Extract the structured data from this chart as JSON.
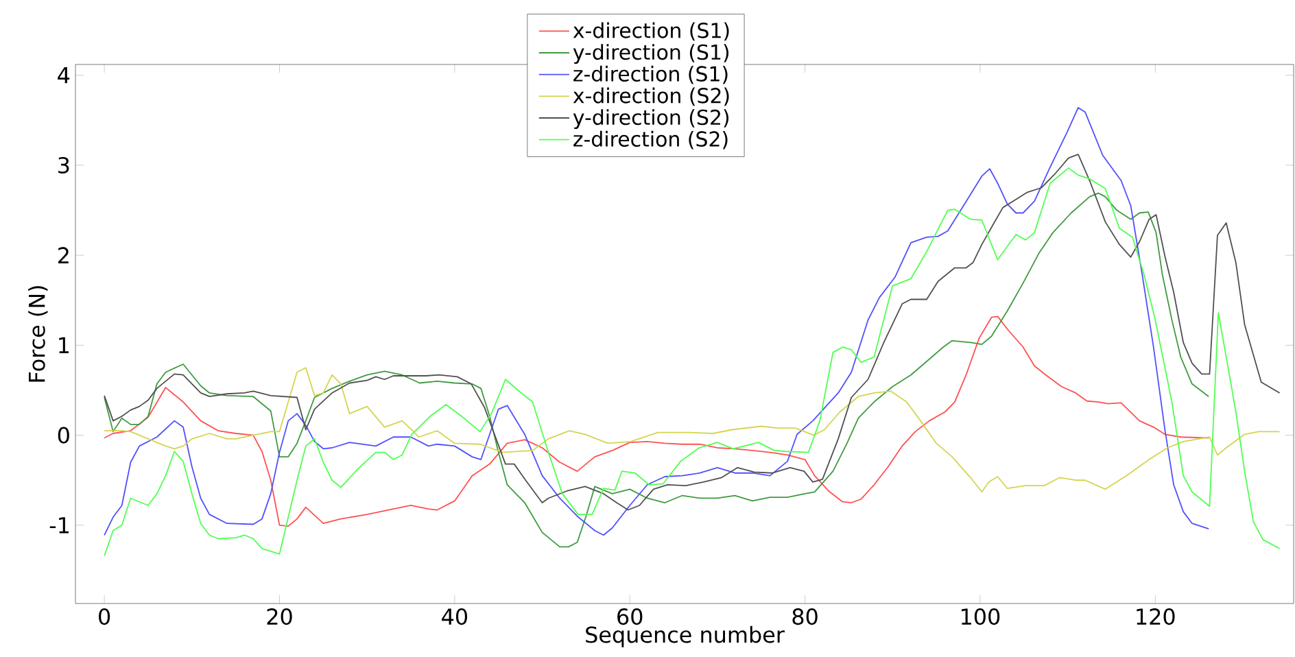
{
  "chart_data": {
    "type": "line",
    "xlabel": "Sequence number",
    "ylabel": "Force (N)",
    "xlim": [
      -3.3,
      135.8
    ],
    "ylim": [
      -1.87,
      4.12
    ],
    "xticks": [
      0,
      20,
      40,
      60,
      80,
      100,
      120
    ],
    "yticks": [
      -1,
      0,
      1,
      2,
      3,
      4
    ],
    "legend": "top",
    "line_style": "solid",
    "series": [
      {
        "name": "x-direction (S1)",
        "color": "#ff5050",
        "x": [
          0,
          1,
          3,
          5,
          7,
          9,
          11,
          13,
          15,
          17,
          18,
          19,
          20,
          21,
          22,
          23,
          25,
          27,
          30,
          33,
          35,
          37,
          38,
          40,
          42,
          44,
          46,
          48,
          50,
          52,
          54,
          56,
          58,
          60,
          62,
          64,
          66,
          68,
          70,
          72,
          74,
          76,
          78,
          80,
          81.1,
          82.7,
          84.3,
          85.3,
          86.4,
          87.9,
          89.5,
          91.1,
          92.6,
          94.2,
          96,
          97.1,
          98.4,
          99.9,
          101.3,
          102,
          103.1,
          104.9,
          106.2,
          107.5,
          109.3,
          110.9,
          112.2,
          113.5,
          114.6,
          116.1,
          118.2,
          119.8,
          121.1,
          122.9,
          126.1
        ],
        "values": [
          -0.03,
          0.02,
          0.05,
          0.2,
          0.53,
          0.37,
          0.16,
          0.05,
          0.02,
          0,
          -0.18,
          -0.5,
          -1.0,
          -1.01,
          -0.93,
          -0.8,
          -0.98,
          -0.93,
          -0.88,
          -0.82,
          -0.78,
          -0.82,
          -0.83,
          -0.73,
          -0.45,
          -0.32,
          -0.09,
          -0.05,
          -0.14,
          -0.3,
          -0.4,
          -0.24,
          -0.17,
          -0.08,
          -0.07,
          -0.09,
          -0.1,
          -0.1,
          -0.14,
          -0.15,
          -0.17,
          -0.19,
          -0.22,
          -0.27,
          -0.45,
          -0.62,
          -0.74,
          -0.75,
          -0.71,
          -0.55,
          -0.35,
          -0.12,
          0.04,
          0.16,
          0.26,
          0.37,
          0.67,
          1.08,
          1.31,
          1.32,
          1.18,
          0.98,
          0.77,
          0.67,
          0.54,
          0.47,
          0.38,
          0.37,
          0.35,
          0.36,
          0.16,
          0.09,
          0.01,
          -0.02,
          -0.03
        ]
      },
      {
        "name": "y-direction (S1)",
        "color": "#3f9a3f",
        "x": [
          0,
          1,
          2,
          3,
          4,
          5,
          6,
          7,
          9,
          11,
          12,
          14,
          17,
          19,
          20,
          21,
          22,
          23,
          24,
          26,
          28,
          30,
          32,
          34,
          36,
          38,
          40,
          42,
          43,
          44,
          45,
          46,
          48,
          50,
          52,
          53,
          54,
          55,
          56,
          58,
          60,
          62,
          64,
          66,
          68,
          70,
          72,
          74,
          76,
          78,
          80,
          81.1,
          83.2,
          84.8,
          86.1,
          87.9,
          90,
          92.1,
          93.9,
          95.8,
          96.8,
          98.9,
          100.2,
          101.3,
          103.1,
          104.9,
          106.7,
          108.3,
          110.4,
          112.5,
          113.5,
          114.3,
          115.6,
          117.2,
          118.2,
          119.2,
          120.1,
          120.8,
          121.9,
          122.9,
          124.2,
          126.1
        ],
        "values": [
          0.42,
          0.04,
          0.19,
          0.12,
          0.12,
          0.21,
          0.57,
          0.7,
          0.79,
          0.55,
          0.47,
          0.44,
          0.43,
          0.27,
          -0.24,
          -0.24,
          -0.09,
          0.16,
          0.42,
          0.52,
          0.6,
          0.67,
          0.71,
          0.67,
          0.58,
          0.6,
          0.58,
          0.57,
          0.52,
          0.21,
          -0.19,
          -0.55,
          -0.75,
          -1.08,
          -1.24,
          -1.24,
          -1.19,
          -0.9,
          -0.57,
          -0.65,
          -0.6,
          -0.7,
          -0.75,
          -0.67,
          -0.7,
          -0.7,
          -0.67,
          -0.73,
          -0.69,
          -0.69,
          -0.65,
          -0.63,
          -0.4,
          -0.09,
          0.19,
          0.37,
          0.54,
          0.67,
          0.82,
          0.98,
          1.05,
          1.03,
          1.01,
          1.1,
          1.38,
          1.69,
          2.02,
          2.25,
          2.47,
          2.65,
          2.69,
          2.65,
          2.5,
          2.4,
          2.47,
          2.48,
          2.25,
          1.79,
          1.28,
          0.87,
          0.57,
          0.43
        ]
      },
      {
        "name": "z-direction (S1)",
        "color": "#5050ff",
        "x": [
          0,
          1,
          2,
          3,
          4,
          6,
          8,
          9,
          10,
          11,
          12,
          14,
          17,
          18,
          19,
          20,
          21,
          22,
          23,
          24,
          25,
          26,
          28,
          31,
          33,
          35,
          37,
          38,
          40,
          42,
          43,
          44,
          45,
          46,
          48,
          50,
          52,
          54,
          56,
          57,
          58,
          60,
          62,
          64,
          66,
          68,
          70,
          72,
          74,
          76,
          78,
          79.1,
          80.9,
          83.8,
          85.3,
          87.2,
          88.5,
          90.3,
          92.1,
          93.9,
          95.2,
          96.3,
          98.1,
          100.2,
          101.1,
          102,
          103.1,
          104.1,
          104.9,
          106.2,
          108,
          109.9,
          111.2,
          112,
          114,
          116.1,
          117.2,
          118.5,
          119.8,
          121.1,
          122.1,
          123.2,
          124.2,
          126.1
        ],
        "values": [
          -1.11,
          -0.91,
          -0.78,
          -0.3,
          -0.12,
          -0.02,
          0.16,
          0.09,
          -0.35,
          -0.7,
          -0.88,
          -0.98,
          -0.99,
          -0.93,
          -0.65,
          -0.19,
          0.16,
          0.24,
          0.11,
          -0.07,
          -0.15,
          -0.14,
          -0.08,
          -0.12,
          -0.02,
          -0.02,
          -0.12,
          -0.1,
          -0.12,
          -0.24,
          -0.27,
          0.01,
          0.29,
          0.33,
          0.01,
          -0.45,
          -0.7,
          -0.9,
          -1.06,
          -1.11,
          -1.03,
          -0.78,
          -0.55,
          -0.46,
          -0.45,
          -0.42,
          -0.36,
          -0.42,
          -0.42,
          -0.45,
          -0.29,
          0.01,
          0.16,
          0.47,
          0.7,
          1.28,
          1.53,
          1.76,
          2.14,
          2.2,
          2.21,
          2.27,
          2.55,
          2.88,
          2.96,
          2.8,
          2.57,
          2.47,
          2.47,
          2.6,
          2.98,
          3.36,
          3.64,
          3.59,
          3.11,
          2.83,
          2.55,
          1.79,
          0.98,
          0.06,
          -0.55,
          -0.85,
          -0.98,
          -1.04
        ]
      },
      {
        "name": "x-direction (S2)",
        "color": "#d4d450",
        "x": [
          0,
          2,
          3,
          5,
          7,
          8,
          9,
          10,
          12,
          14,
          15,
          17,
          19,
          20,
          21,
          22,
          23,
          24,
          25,
          26,
          27,
          28,
          30,
          32,
          34,
          35.1,
          35.9,
          38,
          40,
          42.9,
          45.5,
          48.9,
          50.7,
          53.1,
          54.9,
          57.5,
          60.1,
          63.2,
          66.9,
          69.5,
          71.6,
          75,
          76.8,
          78.9,
          81,
          82.2,
          84,
          86.1,
          87.9,
          89.8,
          91.6,
          93.2,
          95,
          96.8,
          98.9,
          100.2,
          101,
          102,
          103.1,
          105.2,
          107.3,
          109.1,
          110.9,
          112,
          114.3,
          116.7,
          119.3,
          121.4,
          123.2,
          126.2,
          127.1,
          128.1,
          130.2,
          131.8,
          134.2
        ],
        "values": [
          0.05,
          0.05,
          0.04,
          -0.04,
          -0.12,
          -0.15,
          -0.12,
          -0.04,
          0.02,
          -0.04,
          -0.04,
          0,
          0.04,
          0.04,
          0.37,
          0.7,
          0.75,
          0.44,
          0.47,
          0.67,
          0.57,
          0.24,
          0.32,
          0.09,
          0.16,
          0.06,
          -0.02,
          0.05,
          -0.09,
          -0.1,
          -0.19,
          -0.17,
          -0.04,
          0.05,
          0.01,
          -0.09,
          -0.07,
          0.03,
          0.03,
          0.02,
          0.06,
          0.1,
          0.08,
          0.08,
          0,
          0.06,
          0.26,
          0.43,
          0.47,
          0.49,
          0.37,
          0.16,
          -0.09,
          -0.24,
          -0.47,
          -0.63,
          -0.52,
          -0.46,
          -0.59,
          -0.56,
          -0.56,
          -0.47,
          -0.5,
          -0.5,
          -0.6,
          -0.45,
          -0.27,
          -0.14,
          -0.07,
          -0.02,
          -0.22,
          -0.14,
          0.01,
          0.04,
          0.04
        ]
      },
      {
        "name": "y-direction (S2)",
        "color": "#505050",
        "x": [
          0,
          1,
          2,
          3,
          4,
          5,
          6,
          8,
          9,
          11,
          12,
          14,
          16,
          17,
          19,
          22,
          23,
          24,
          26,
          28,
          30,
          31,
          32,
          33,
          35,
          36.7,
          38.2,
          40.3,
          41.9,
          43.4,
          45.8,
          46.8,
          48.1,
          50,
          50.7,
          52.8,
          54.9,
          57,
          58.5,
          59.8,
          61.1,
          62.7,
          64.3,
          66.4,
          68.4,
          70.5,
          72.3,
          74.2,
          76.3,
          78.3,
          79.9,
          80.9,
          82,
          83.8,
          85.3,
          87.2,
          89,
          91.1,
          92.1,
          93.9,
          95.2,
          97.1,
          98.4,
          99.2,
          100.2,
          101.3,
          102.6,
          104.1,
          105.4,
          107,
          108.6,
          110.1,
          111.2,
          112.5,
          114.3,
          115.9,
          117.2,
          118.2,
          119.3,
          120.1,
          121.1,
          122.1,
          123.2,
          124.2,
          125.3,
          126.2,
          127.1,
          128.1,
          129.2,
          130.2,
          132.1,
          134.2
        ],
        "values": [
          0.44,
          0.16,
          0.21,
          0.28,
          0.32,
          0.39,
          0.52,
          0.68,
          0.67,
          0.47,
          0.43,
          0.46,
          0.47,
          0.49,
          0.44,
          0.42,
          0.06,
          0.29,
          0.47,
          0.58,
          0.61,
          0.65,
          0.62,
          0.66,
          0.66,
          0.66,
          0.67,
          0.65,
          0.57,
          0.31,
          -0.32,
          -0.32,
          -0.5,
          -0.75,
          -0.7,
          -0.62,
          -0.57,
          -0.65,
          -0.75,
          -0.83,
          -0.78,
          -0.6,
          -0.55,
          -0.56,
          -0.52,
          -0.47,
          -0.36,
          -0.41,
          -0.42,
          -0.36,
          -0.4,
          -0.52,
          -0.49,
          -0.04,
          0.42,
          0.62,
          1.03,
          1.46,
          1.51,
          1.51,
          1.71,
          1.86,
          1.86,
          1.92,
          2.12,
          2.31,
          2.53,
          2.62,
          2.7,
          2.75,
          2.91,
          3.08,
          3.12,
          2.83,
          2.37,
          2.12,
          1.98,
          2.15,
          2.4,
          2.45,
          1.99,
          1.59,
          1.03,
          0.8,
          0.68,
          0.68,
          2.22,
          2.36,
          1.92,
          1.23,
          0.59,
          0.47
        ]
      },
      {
        "name": "z-direction (S2)",
        "color": "#50ff50",
        "x": [
          0,
          1,
          2,
          3,
          5,
          6,
          7,
          8,
          9,
          10,
          11,
          12,
          13,
          15,
          16,
          17,
          18,
          20,
          21,
          22,
          23,
          24,
          25,
          26,
          27,
          29,
          31,
          32,
          33,
          34,
          35.1,
          37.2,
          39,
          40.8,
          42.9,
          44.2,
          45.8,
          47.6,
          48.9,
          50.7,
          52.3,
          54.1,
          55.7,
          57,
          58.3,
          59.1,
          60.6,
          62.2,
          63.8,
          65.8,
          67.9,
          70,
          71.8,
          74.7,
          76.5,
          77.8,
          80.4,
          81.7,
          83.2,
          84.3,
          85.3,
          86.4,
          87.9,
          90,
          92.1,
          93.9,
          96.3,
          97.1,
          98.9,
          100.2,
          102,
          104.1,
          105.2,
          106.2,
          108,
          110.1,
          111.2,
          112.5,
          114.3,
          115.9,
          117.4,
          118.7,
          120,
          121.9,
          123.2,
          124.2,
          126.2,
          127.2,
          128.1,
          129.2,
          130.2,
          131.2,
          132.3,
          134.2
        ],
        "values": [
          -1.34,
          -1.06,
          -1.0,
          -0.7,
          -0.78,
          -0.65,
          -0.45,
          -0.18,
          -0.29,
          -0.65,
          -0.98,
          -1.11,
          -1.15,
          -1.14,
          -1.11,
          -1.15,
          -1.26,
          -1.32,
          -0.91,
          -0.5,
          -0.12,
          -0.04,
          -0.3,
          -0.5,
          -0.58,
          -0.37,
          -0.19,
          -0.19,
          -0.27,
          -0.22,
          0.01,
          0.21,
          0.34,
          0.21,
          0.04,
          0.24,
          0.62,
          0.47,
          0.37,
          -0.19,
          -0.65,
          -0.88,
          -0.88,
          -0.59,
          -0.61,
          -0.4,
          -0.42,
          -0.55,
          -0.54,
          -0.29,
          -0.14,
          -0.08,
          -0.15,
          -0.08,
          -0.17,
          -0.18,
          -0.19,
          0.16,
          0.92,
          0.98,
          0.95,
          0.81,
          0.87,
          1.66,
          1.74,
          2.04,
          2.5,
          2.51,
          2.4,
          2.39,
          1.95,
          2.23,
          2.17,
          2.25,
          2.8,
          2.97,
          2.89,
          2.85,
          2.74,
          2.3,
          2.2,
          1.79,
          1.28,
          0.37,
          -0.45,
          -0.63,
          -0.79,
          1.36,
          0.87,
          0.26,
          -0.4,
          -0.96,
          -1.16,
          -1.26
        ]
      }
    ]
  }
}
